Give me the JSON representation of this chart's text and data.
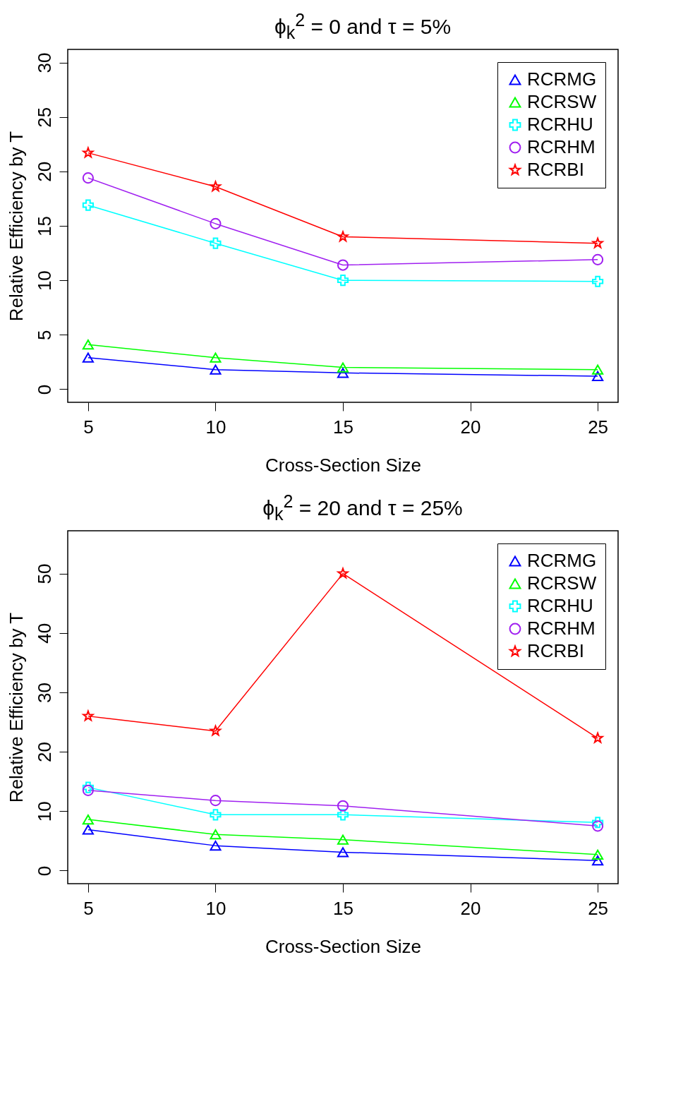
{
  "chart_data": [
    {
      "type": "line",
      "title": "ϕ$_{k}$$^{2}$ = 0 and τ = 5%",
      "xlabel": "Cross-Section Size",
      "ylabel": "Relative Efficiency by T",
      "x": [
        5,
        10,
        15,
        25
      ],
      "xlim": [
        4.2,
        25.8
      ],
      "xticks": [
        5,
        10,
        15,
        20,
        25
      ],
      "ylim": [
        -1.2,
        31.2
      ],
      "yticks": [
        0,
        5,
        10,
        15,
        20,
        25,
        30
      ],
      "grid": false,
      "legend": "top right",
      "series": [
        {
          "name": "RCRMG",
          "color": "#0000ff",
          "marker": "triangle",
          "values": [
            2.9,
            1.8,
            1.5,
            1.2
          ]
        },
        {
          "name": "RCRSW",
          "color": "#00ff00",
          "marker": "triangle",
          "values": [
            4.1,
            2.9,
            2.0,
            1.8
          ]
        },
        {
          "name": "RCRHU",
          "color": "#00ffff",
          "marker": "cross",
          "values": [
            16.9,
            13.4,
            10.0,
            9.9
          ]
        },
        {
          "name": "RCRHM",
          "color": "#a020f0",
          "marker": "circle",
          "values": [
            19.4,
            15.2,
            11.4,
            11.9
          ]
        },
        {
          "name": "RCRBI",
          "color": "#ff0000",
          "marker": "star",
          "values": [
            21.7,
            18.6,
            14.0,
            13.4
          ]
        }
      ]
    },
    {
      "type": "line",
      "title": "ϕ$_{k}$$^{2}$ = 20 and τ = 25%",
      "xlabel": "Cross-Section Size",
      "ylabel": "Relative Efficiency by T",
      "x": [
        5,
        10,
        15,
        25
      ],
      "xlim": [
        4.2,
        25.8
      ],
      "xticks": [
        5,
        10,
        15,
        20,
        25
      ],
      "ylim": [
        -2.2,
        57.2
      ],
      "yticks": [
        0,
        10,
        20,
        30,
        40,
        50
      ],
      "grid": false,
      "legend": "top right",
      "series": [
        {
          "name": "RCRMG",
          "color": "#0000ff",
          "marker": "triangle",
          "values": [
            6.9,
            4.2,
            3.1,
            1.7
          ]
        },
        {
          "name": "RCRSW",
          "color": "#00ff00",
          "marker": "triangle",
          "values": [
            8.6,
            6.1,
            5.2,
            2.7
          ]
        },
        {
          "name": "RCRHU",
          "color": "#00ffff",
          "marker": "cross",
          "values": [
            14.0,
            9.4,
            9.4,
            8.1
          ]
        },
        {
          "name": "RCRHM",
          "color": "#a020f0",
          "marker": "circle",
          "values": [
            13.5,
            11.8,
            10.9,
            7.5
          ]
        },
        {
          "name": "RCRBI",
          "color": "#ff0000",
          "marker": "star",
          "values": [
            26.0,
            23.5,
            50.0,
            22.3
          ]
        }
      ]
    }
  ]
}
